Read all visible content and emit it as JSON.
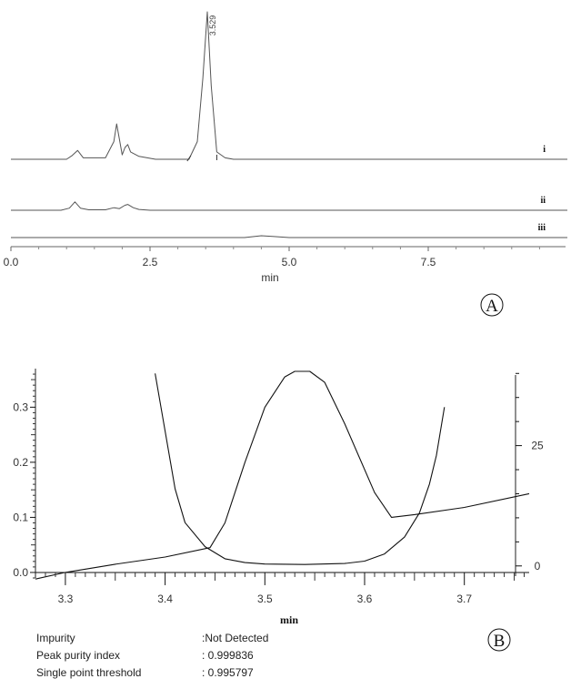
{
  "chart_data": [
    {
      "type": "line",
      "panel": "A",
      "xlabel": "min",
      "xlim": [
        0.0,
        10.0
      ],
      "x_ticks": [
        "0.0",
        "2.5",
        "5.0",
        "7.5"
      ],
      "x_tick_values": [
        0.0,
        2.5,
        5.0,
        7.5
      ],
      "grid": false,
      "peak_annotation": {
        "label": "3.529",
        "x": 3.529
      },
      "series": [
        {
          "name": "i",
          "x": [
            0.0,
            1.0,
            1.1,
            1.2,
            1.3,
            1.7,
            1.85,
            1.9,
            2.0,
            2.05,
            2.1,
            2.15,
            2.3,
            2.6,
            3.2,
            3.35,
            3.45,
            3.529,
            3.6,
            3.7,
            3.85,
            4.0,
            5.0,
            10.0
          ],
          "y": [
            0.0,
            0.0,
            0.025,
            0.06,
            0.01,
            0.01,
            0.12,
            0.24,
            0.03,
            0.08,
            0.1,
            0.05,
            0.02,
            0.0,
            0.0,
            0.12,
            0.55,
            1.0,
            0.5,
            0.05,
            0.01,
            0.0,
            0.0,
            0.0
          ]
        },
        {
          "name": "ii",
          "x": [
            0.0,
            0.9,
            1.05,
            1.15,
            1.25,
            1.4,
            1.7,
            1.85,
            1.95,
            2.05,
            2.1,
            2.2,
            2.3,
            2.5,
            3.0,
            10.0
          ],
          "y": [
            0.0,
            0.0,
            0.05,
            0.2,
            0.05,
            0.01,
            0.01,
            0.06,
            0.04,
            0.12,
            0.14,
            0.06,
            0.02,
            0.0,
            0.0,
            0.0
          ]
        },
        {
          "name": "iii",
          "x": [
            0.0,
            4.2,
            4.5,
            4.7,
            5.0,
            10.0
          ],
          "y": [
            0.0,
            0.0,
            0.03,
            0.02,
            0.0,
            0.0
          ]
        }
      ]
    },
    {
      "type": "line",
      "panel": "B",
      "xlabel": "min",
      "xlim": [
        3.27,
        3.765
      ],
      "x_ticks": [
        "3.3",
        "3.4",
        "3.5",
        "3.6",
        "3.7"
      ],
      "x_tick_values": [
        3.3,
        3.4,
        3.5,
        3.6,
        3.7
      ],
      "ylim_left": [
        -0.01,
        0.37
      ],
      "y_ticks_left": [
        "0.0",
        "0.1",
        "0.2",
        "0.3"
      ],
      "y_tick_values_left": [
        0.0,
        0.1,
        0.2,
        0.3
      ],
      "ylim_right": [
        -2.5,
        41.0
      ],
      "y_ticks_right": [
        "0",
        "25"
      ],
      "y_tick_values_right": [
        0,
        25
      ],
      "y_minor_ticks_right": [
        0,
        5,
        10,
        15,
        20,
        25,
        30,
        35,
        40
      ],
      "grid": false,
      "series": [
        {
          "name": "",
          "axis": "left",
          "x": [
            3.27,
            3.3,
            3.35,
            3.4,
            3.445,
            3.46,
            3.48,
            3.5,
            3.52,
            3.53,
            3.545,
            3.56,
            3.58,
            3.61,
            3.627,
            3.65,
            3.7,
            3.765
          ],
          "y": [
            -0.012,
            0.0,
            0.015,
            0.028,
            0.045,
            0.09,
            0.2,
            0.3,
            0.355,
            0.365,
            0.365,
            0.345,
            0.27,
            0.145,
            0.1,
            0.105,
            0.118,
            0.143
          ]
        },
        {
          "name": "",
          "axis": "right",
          "x": [
            3.39,
            3.4,
            3.41,
            3.42,
            3.44,
            3.46,
            3.48,
            3.5,
            3.54,
            3.58,
            3.6,
            3.62,
            3.64,
            3.655,
            3.665,
            3.672,
            3.68
          ],
          "y": [
            40.0,
            28.0,
            16.0,
            9.0,
            4.0,
            1.5,
            0.7,
            0.4,
            0.3,
            0.5,
            1.0,
            2.5,
            6.0,
            11.0,
            17.0,
            23.0,
            33.0
          ]
        }
      ]
    }
  ],
  "labels": {
    "panel_a": "A",
    "panel_b": "B"
  },
  "info": [
    {
      "key": "Impurity",
      "value": ":Not Detected"
    },
    {
      "key": "Peak purity index",
      "value": ": 0.999836"
    },
    {
      "key": "Single point threshold",
      "value": ": 0.995797"
    }
  ]
}
